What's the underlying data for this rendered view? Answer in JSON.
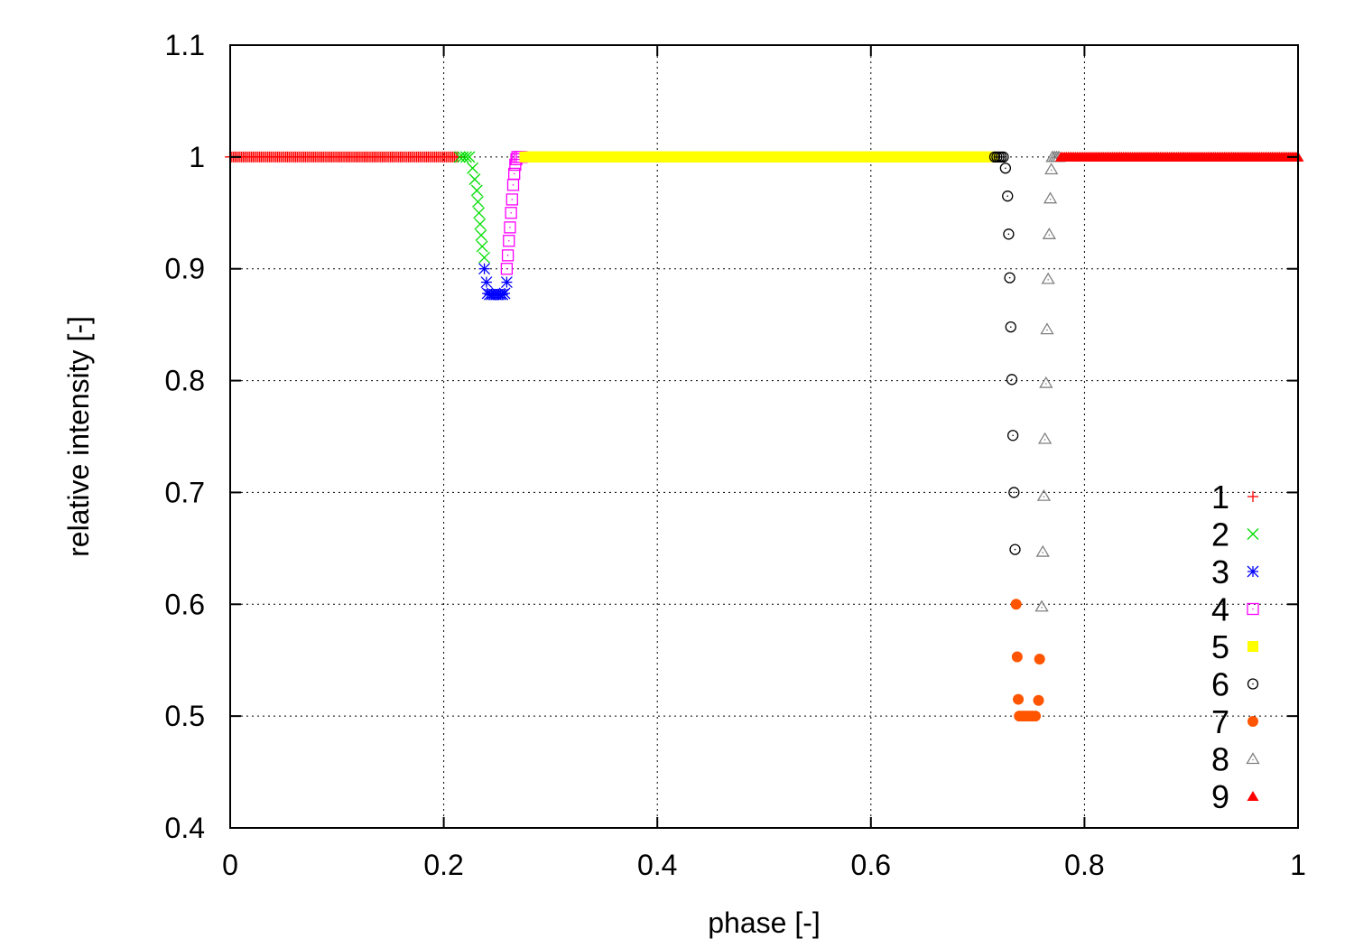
{
  "chart_data": {
    "type": "scatter",
    "title": "",
    "xlabel": "phase [-]",
    "ylabel": "relative intensity [-]",
    "xlim": [
      0,
      1
    ],
    "ylim": [
      0.4,
      1.1
    ],
    "xticks": [
      "0",
      "0.2",
      "0.4",
      "0.6",
      "0.8",
      "1"
    ],
    "yticks": [
      "0.4",
      "0.5",
      "0.6",
      "0.7",
      "0.8",
      "0.9",
      "1",
      "1.1"
    ],
    "grid": true,
    "legend_position": "bottom-right",
    "series": [
      {
        "name": "1",
        "marker": "plus",
        "color": "#ff0000",
        "range": {
          "from": 0.0,
          "to": 0.213,
          "y": 1.0,
          "n": 140
        }
      },
      {
        "name": "2",
        "marker": "cross",
        "color": "#00dd00",
        "points": [
          [
            0.215,
            1.0
          ],
          [
            0.218,
            1.0
          ],
          [
            0.221,
            1.0
          ],
          [
            0.224,
            1.0
          ],
          [
            0.227,
            0.99
          ],
          [
            0.229,
            0.98
          ],
          [
            0.231,
            0.97
          ],
          [
            0.232,
            0.96
          ],
          [
            0.233,
            0.95
          ],
          [
            0.234,
            0.94
          ],
          [
            0.235,
            0.93
          ],
          [
            0.236,
            0.92
          ],
          [
            0.238,
            0.91
          ]
        ]
      },
      {
        "name": "3",
        "marker": "star",
        "color": "#0000ff",
        "points": [
          [
            0.238,
            0.9
          ],
          [
            0.24,
            0.888
          ],
          [
            0.241,
            0.878
          ],
          [
            0.243,
            0.877
          ],
          [
            0.245,
            0.877
          ],
          [
            0.247,
            0.877
          ],
          [
            0.249,
            0.877
          ],
          [
            0.251,
            0.877
          ],
          [
            0.253,
            0.877
          ],
          [
            0.255,
            0.877
          ],
          [
            0.257,
            0.878
          ],
          [
            0.259,
            0.888
          ]
        ]
      },
      {
        "name": "4",
        "marker": "square-open",
        "color": "#ff00ff",
        "points": [
          [
            0.259,
            0.9
          ],
          [
            0.26,
            0.912
          ],
          [
            0.261,
            0.925
          ],
          [
            0.262,
            0.937
          ],
          [
            0.263,
            0.95
          ],
          [
            0.264,
            0.962
          ],
          [
            0.265,
            0.975
          ],
          [
            0.266,
            0.985
          ],
          [
            0.267,
            0.993
          ],
          [
            0.268,
            0.998
          ],
          [
            0.269,
            1.0
          ],
          [
            0.271,
            1.0
          ],
          [
            0.273,
            1.0
          ]
        ]
      },
      {
        "name": "5",
        "marker": "square-filled",
        "color": "#ffff00",
        "range": {
          "from": 0.276,
          "to": 0.714,
          "y": 1.0,
          "n": 240
        }
      },
      {
        "name": "6",
        "marker": "circle-open",
        "color": "#000000",
        "points": [
          [
            0.716,
            1.0
          ],
          [
            0.718,
            1.0
          ],
          [
            0.72,
            1.0
          ],
          [
            0.722,
            1.0
          ],
          [
            0.724,
            1.0
          ],
          [
            0.726,
            0.99
          ],
          [
            0.728,
            0.965
          ],
          [
            0.729,
            0.931
          ],
          [
            0.73,
            0.892
          ],
          [
            0.731,
            0.848
          ],
          [
            0.732,
            0.801
          ],
          [
            0.733,
            0.751
          ],
          [
            0.734,
            0.7
          ],
          [
            0.735,
            0.649
          ]
        ]
      },
      {
        "name": "7",
        "marker": "circle-filled",
        "color": "#ff5500",
        "points": [
          [
            0.736,
            0.6
          ],
          [
            0.737,
            0.553
          ],
          [
            0.738,
            0.515
          ],
          [
            0.739,
            0.5
          ],
          [
            0.742,
            0.5
          ],
          [
            0.745,
            0.5
          ],
          [
            0.748,
            0.5
          ],
          [
            0.751,
            0.5
          ],
          [
            0.754,
            0.5
          ],
          [
            0.757,
            0.514
          ],
          [
            0.758,
            0.551
          ]
        ]
      },
      {
        "name": "8",
        "marker": "triangle-open",
        "color": "#808080",
        "points": [
          [
            0.76,
            0.598
          ],
          [
            0.761,
            0.647
          ],
          [
            0.762,
            0.697
          ],
          [
            0.763,
            0.748
          ],
          [
            0.764,
            0.798
          ],
          [
            0.765,
            0.846
          ],
          [
            0.766,
            0.891
          ],
          [
            0.767,
            0.931
          ],
          [
            0.768,
            0.963
          ],
          [
            0.769,
            0.989
          ],
          [
            0.77,
            1.0
          ],
          [
            0.772,
            1.0
          ],
          [
            0.774,
            1.0
          ],
          [
            0.776,
            1.0
          ]
        ]
      },
      {
        "name": "9",
        "marker": "triangle-filled",
        "color": "#ff0000",
        "range": {
          "from": 0.778,
          "to": 1.0,
          "y": 1.0,
          "n": 130
        }
      }
    ]
  }
}
